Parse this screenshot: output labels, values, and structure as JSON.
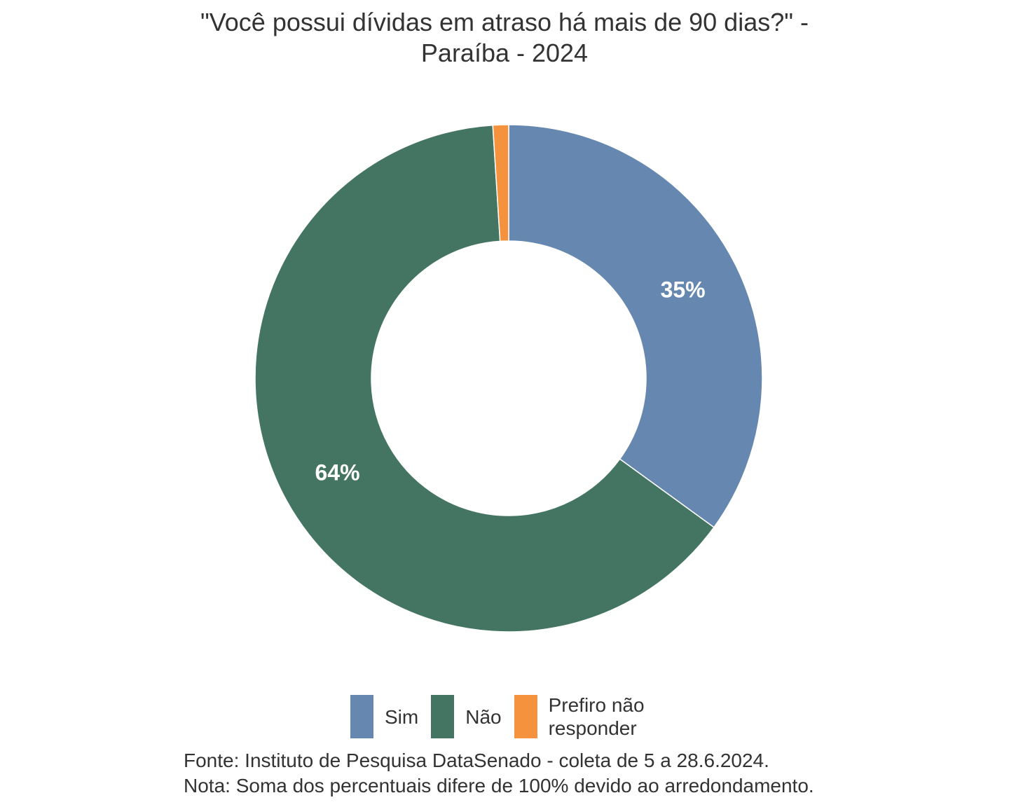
{
  "title_line1": "\"Você possui dívidas em atraso há mais de 90 dias?\" -",
  "title_line2": "Paraíba - 2024",
  "chart_data": {
    "type": "pie",
    "variant": "donut",
    "title": "\"Você possui dívidas em atraso há mais de 90 dias?\" - Paraíba - 2024",
    "categories": [
      "Sim",
      "Não",
      "Prefiro não responder"
    ],
    "values": [
      35,
      64,
      1
    ],
    "data_labels": [
      "35%",
      "64%",
      ""
    ],
    "colors": [
      "#6688b0",
      "#447563",
      "#f5923e"
    ],
    "legend_position": "bottom"
  },
  "legend": [
    {
      "label": "Sim",
      "color": "#6688b0"
    },
    {
      "label": "Não",
      "color": "#447563"
    },
    {
      "label": "Prefiro não\nresponder",
      "color": "#f5923e"
    }
  ],
  "caption": {
    "source": "Fonte: Instituto de Pesquisa DataSenado - coleta de 5 a 28.6.2024.",
    "note": "Nota: Soma dos percentuais difere de 100% devido ao arredondamento."
  }
}
